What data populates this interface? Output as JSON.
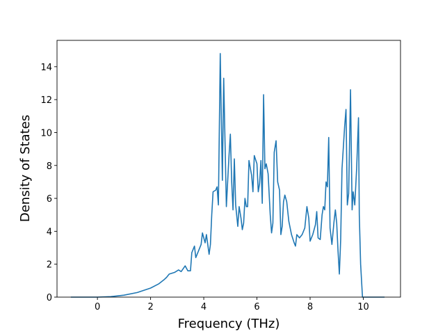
{
  "chart_data": {
    "type": "line",
    "xlabel": "Frequency (THz)",
    "ylabel": "Density of States",
    "color": "#1f77b4",
    "xlim": [
      -1.52,
      11.4
    ],
    "ylim": [
      0,
      15.6
    ],
    "xticks": [
      0,
      2,
      4,
      6,
      8,
      10
    ],
    "yticks": [
      0,
      2,
      4,
      6,
      8,
      10,
      12,
      14
    ],
    "x": [
      -1,
      0,
      0.5,
      1,
      1.5,
      2,
      2.3,
      2.5,
      2.6,
      2.7,
      2.9,
      3.05,
      3.15,
      3.3,
      3.4,
      3.5,
      3.55,
      3.65,
      3.7,
      3.8,
      3.9,
      3.95,
      4.05,
      4.1,
      4.2,
      4.25,
      4.3,
      4.35,
      4.45,
      4.5,
      4.55,
      4.62,
      4.7,
      4.75,
      4.85,
      4.95,
      5.0,
      5.05,
      5.1,
      5.15,
      5.2,
      5.28,
      5.33,
      5.4,
      5.45,
      5.5,
      5.55,
      5.6,
      5.65,
      5.7,
      5.8,
      5.85,
      5.9,
      6.0,
      6.05,
      6.1,
      6.15,
      6.2,
      6.25,
      6.3,
      6.35,
      6.42,
      6.5,
      6.55,
      6.6,
      6.65,
      6.72,
      6.78,
      6.85,
      6.9,
      6.95,
      7.0,
      7.05,
      7.12,
      7.2,
      7.3,
      7.4,
      7.45,
      7.5,
      7.6,
      7.7,
      7.8,
      7.88,
      7.95,
      8.0,
      8.1,
      8.2,
      8.25,
      8.3,
      8.38,
      8.45,
      8.5,
      8.55,
      8.6,
      8.65,
      8.7,
      8.75,
      8.82,
      8.9,
      8.95,
      9.0,
      9.05,
      9.1,
      9.15,
      9.2,
      9.3,
      9.35,
      9.4,
      9.45,
      9.52,
      9.58,
      9.62,
      9.68,
      9.75,
      9.82,
      9.85,
      9.9,
      9.97,
      10.8
    ],
    "values": [
      0,
      0,
      0.03,
      0.12,
      0.28,
      0.55,
      0.8,
      1.05,
      1.2,
      1.4,
      1.5,
      1.65,
      1.55,
      1.9,
      1.6,
      1.6,
      2.7,
      3.1,
      2.4,
      2.8,
      3.2,
      3.9,
      3.3,
      3.8,
      2.6,
      3.2,
      5.0,
      6.4,
      6.5,
      6.7,
      5.6,
      14.8,
      7.1,
      13.3,
      5.5,
      8.6,
      9.9,
      7.0,
      5.3,
      8.4,
      5.6,
      4.3,
      5.5,
      4.8,
      4.1,
      4.5,
      6.0,
      5.5,
      5.5,
      8.3,
      7.4,
      6.4,
      8.6,
      8.1,
      6.4,
      6.9,
      8.3,
      5.7,
      12.3,
      7.8,
      8.1,
      7.5,
      5.0,
      3.9,
      4.5,
      8.8,
      9.5,
      7.0,
      6.5,
      3.8,
      4.3,
      5.8,
      6.2,
      5.8,
      4.6,
      3.8,
      3.3,
      3.1,
      3.8,
      3.6,
      3.8,
      4.2,
      5.5,
      4.8,
      3.4,
      3.8,
      4.4,
      5.2,
      3.6,
      3.5,
      5.0,
      5.5,
      5.3,
      7.0,
      6.7,
      9.7,
      4.2,
      3.2,
      4.6,
      5.3,
      4.5,
      2.8,
      1.4,
      3.5,
      7.8,
      10.4,
      11.4,
      5.6,
      6.3,
      12.6,
      5.3,
      6.4,
      5.6,
      7.8,
      10.9,
      5.0,
      2.0,
      0,
      0
    ]
  }
}
